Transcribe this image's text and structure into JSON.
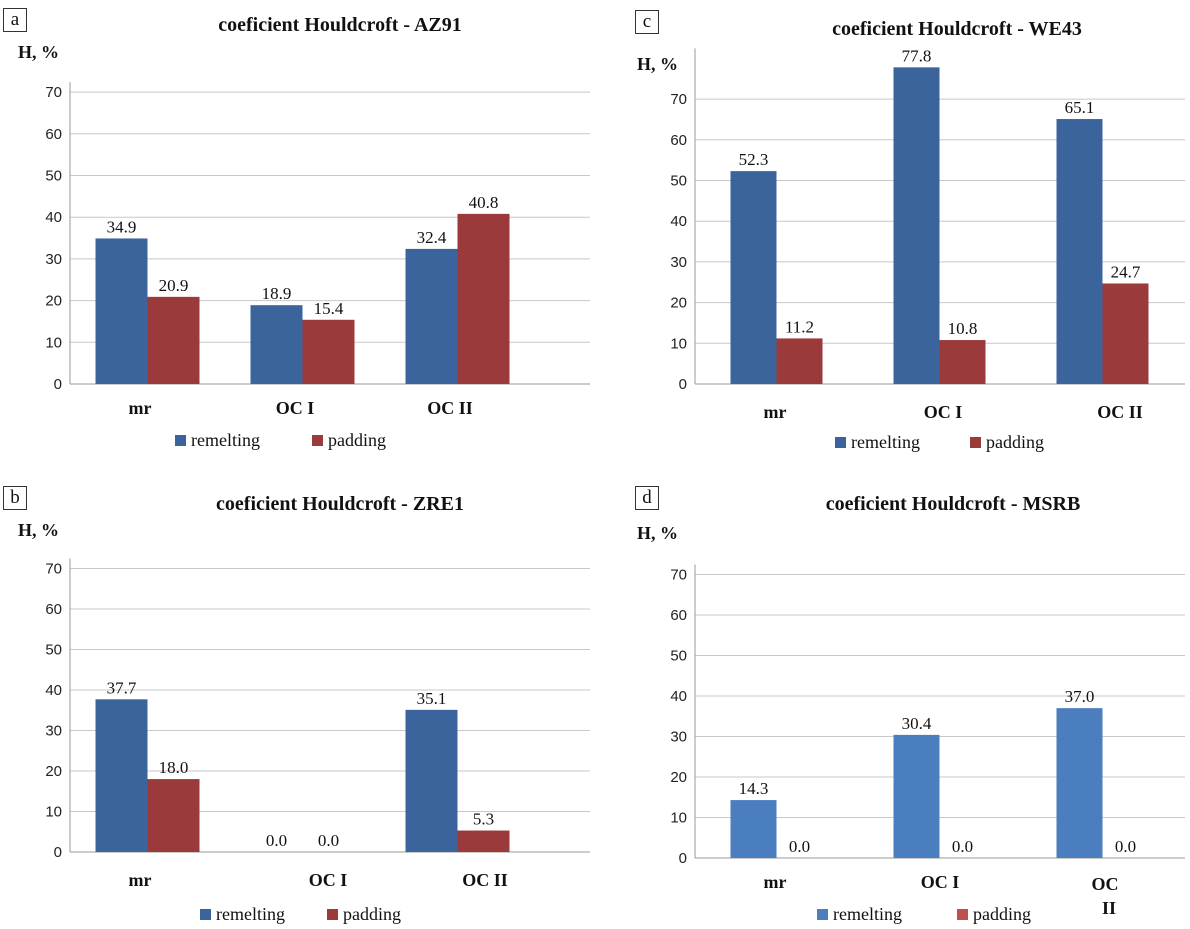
{
  "chart_data": [
    {
      "panel": "a",
      "type": "bar",
      "title": "coeficient Houldcroft - AZ91",
      "ylabel": "H, %",
      "categories": [
        "mr",
        "OC I",
        "OC II"
      ],
      "ylim": [
        0,
        70
      ],
      "yticks": [
        0,
        10,
        20,
        30,
        40,
        50,
        60,
        70
      ],
      "grid": true,
      "legend": "bottom",
      "series": [
        {
          "name": "remelting",
          "color": "#3b649c",
          "values": [
            34.9,
            18.9,
            32.4
          ],
          "labels": [
            "34.9",
            "18.9",
            "32.4"
          ]
        },
        {
          "name": "padding",
          "color": "#9b3a3a",
          "values": [
            20.9,
            15.4,
            40.8
          ],
          "labels": [
            "20.9",
            "15.4",
            "40.8"
          ]
        }
      ]
    },
    {
      "panel": "b",
      "type": "bar",
      "title": "coeficient Houldcroft - ZRE1",
      "ylabel": "H, %",
      "categories": [
        "mr",
        "OC I",
        "OC II"
      ],
      "ylim": [
        0,
        70
      ],
      "yticks": [
        0,
        10,
        20,
        30,
        40,
        50,
        60,
        70
      ],
      "grid": true,
      "legend": "bottom",
      "series": [
        {
          "name": "remelting",
          "color": "#3b649c",
          "values": [
            37.7,
            0.0,
            35.1
          ],
          "labels": [
            "37.7",
            "0.0",
            "35.1"
          ]
        },
        {
          "name": "padding",
          "color": "#9b3a3a",
          "values": [
            18.0,
            0.0,
            5.3
          ],
          "labels": [
            "18.0",
            "0.0",
            "5.3"
          ]
        }
      ]
    },
    {
      "panel": "c",
      "type": "bar",
      "title": "coeficient Houldcroft - WE43",
      "ylabel": "H, %",
      "categories": [
        "mr",
        "OC I",
        "OC II"
      ],
      "ylim": [
        0,
        80
      ],
      "yticks": [
        0,
        10,
        20,
        30,
        40,
        50,
        60,
        70
      ],
      "grid": true,
      "legend": "bottom",
      "series": [
        {
          "name": "remelting",
          "color": "#3b649c",
          "values": [
            52.3,
            77.8,
            65.1
          ],
          "labels": [
            "52.3",
            "77.8",
            "65.1"
          ]
        },
        {
          "name": "padding",
          "color": "#9b3a3a",
          "values": [
            11.2,
            10.8,
            24.7
          ],
          "labels": [
            "11.2",
            "10.8",
            "24.7"
          ]
        }
      ]
    },
    {
      "panel": "d",
      "type": "bar",
      "title": "coeficient Houldcroft - MSRB",
      "ylabel": "H, %",
      "categories": [
        "mr",
        "OC I",
        "OC II"
      ],
      "ylim": [
        0,
        70
      ],
      "yticks": [
        0,
        10,
        20,
        30,
        40,
        50,
        60,
        70
      ],
      "grid": true,
      "legend": "bottom",
      "series": [
        {
          "name": "remelting",
          "color": "#4a7ebf",
          "values": [
            14.3,
            30.4,
            37.0
          ],
          "labels": [
            "14.3",
            "30.4",
            "37.0"
          ]
        },
        {
          "name": "padding",
          "color": "#c0504d",
          "values": [
            0.0,
            0.0,
            0.0
          ],
          "labels": [
            "0.0",
            "0.0",
            "0.0"
          ]
        }
      ]
    }
  ]
}
